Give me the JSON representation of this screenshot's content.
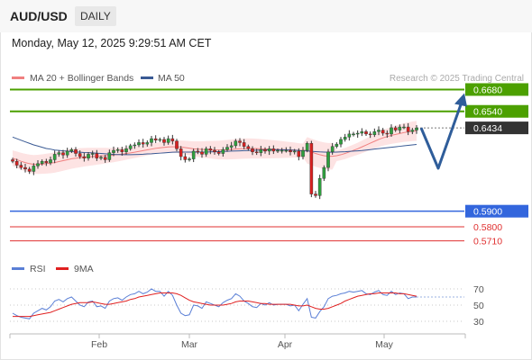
{
  "header": {
    "symbol": "AUD/USD",
    "timeframe": "DAILY",
    "datetime": "Monday, May 12, 2025 9:29:51 AM CET"
  },
  "chart_data": {
    "type": "candlestick",
    "legend": [
      {
        "label": "MA 20 + Bollinger Bands",
        "color": "#f08080"
      },
      {
        "label": "MA 50",
        "color": "#3a5a94"
      }
    ],
    "credit": "Research © 2025 Trading Central",
    "current_price": "0.6434",
    "resistance_levels": [
      "0.6680",
      "0.6540"
    ],
    "support_levels": [
      "0.5900",
      "0.5800",
      "0.5710"
    ],
    "level_colors": {
      "resistance": "#4ca000",
      "pivot": "#3366dd",
      "support": "#e03030",
      "current": "#333333"
    },
    "x_ticks": [
      "Feb",
      "Mar",
      "Apr",
      "May"
    ],
    "y_range": [
      0.565,
      0.67
    ],
    "price_series_close": [
      0.622,
      0.6195,
      0.618,
      0.617,
      0.6155,
      0.619,
      0.6205,
      0.622,
      0.621,
      0.623,
      0.6265,
      0.6275,
      0.626,
      0.6285,
      0.6295,
      0.627,
      0.625,
      0.624,
      0.6265,
      0.627,
      0.624,
      0.6245,
      0.623,
      0.6275,
      0.629,
      0.6295,
      0.628,
      0.63,
      0.632,
      0.6325,
      0.634,
      0.633,
      0.634,
      0.6365,
      0.6355,
      0.636,
      0.634,
      0.6365,
      0.635,
      0.63,
      0.625,
      0.623,
      0.6235,
      0.6285,
      0.628,
      0.6265,
      0.63,
      0.629,
      0.628,
      0.627,
      0.6295,
      0.631,
      0.632,
      0.635,
      0.634,
      0.6315,
      0.63,
      0.628,
      0.6275,
      0.6295,
      0.6285,
      0.63,
      0.6285,
      0.629,
      0.629,
      0.629,
      0.628,
      0.6285,
      0.625,
      0.629,
      0.6335,
      0.601,
      0.6,
      0.611,
      0.618,
      0.628,
      0.6315,
      0.633,
      0.636,
      0.6375,
      0.6395,
      0.6395,
      0.64,
      0.641,
      0.6395,
      0.639,
      0.641,
      0.642,
      0.64,
      0.6395,
      0.6435,
      0.642,
      0.644,
      0.644,
      0.641,
      0.642,
      0.6434
    ],
    "ma50": [
      0.6375,
      0.6365,
      0.6355,
      0.6345,
      0.6335,
      0.6325,
      0.6318,
      0.631,
      0.6302,
      0.6298,
      0.6292,
      0.629,
      0.6287,
      0.6285,
      0.6282,
      0.628,
      0.6278,
      0.6276,
      0.6275,
      0.6274,
      0.6272,
      0.627,
      0.6268,
      0.6266,
      0.6264,
      0.6263,
      0.6262,
      0.6262,
      0.6262,
      0.6263,
      0.6264,
      0.6265,
      0.6267,
      0.6268,
      0.627,
      0.6272,
      0.6274,
      0.6276,
      0.6278,
      0.6279,
      0.6279,
      0.6279,
      0.6279,
      0.6279,
      0.6279,
      0.6279,
      0.6279,
      0.628,
      0.6281,
      0.6282,
      0.6283,
      0.6284,
      0.6285,
      0.6286,
      0.6287,
      0.6288,
      0.6289,
      0.629,
      0.6291,
      0.6292,
      0.6293,
      0.6294,
      0.6294,
      0.6294,
      0.6294,
      0.6293,
      0.6292,
      0.6291,
      0.6289,
      0.6287,
      0.6286,
      0.6284,
      0.6282,
      0.628,
      0.6279,
      0.6278,
      0.6278,
      0.6279,
      0.628,
      0.6281,
      0.6283,
      0.6285,
      0.6287,
      0.6289,
      0.6292,
      0.6295,
      0.6298,
      0.6301,
      0.6304,
      0.6307,
      0.631,
      0.6313,
      0.6316,
      0.6319,
      0.6322,
      0.6325,
      0.6328
    ],
    "ma20": [
      0.624,
      0.623,
      0.622,
      0.6212,
      0.6205,
      0.62,
      0.62,
      0.6202,
      0.6205,
      0.6208,
      0.6212,
      0.6218,
      0.6224,
      0.623,
      0.6236,
      0.624,
      0.6243,
      0.6246,
      0.6248,
      0.625,
      0.6252,
      0.6254,
      0.6256,
      0.6258,
      0.626,
      0.6263,
      0.6266,
      0.627,
      0.6274,
      0.6278,
      0.6283,
      0.6288,
      0.6293,
      0.6298,
      0.6303,
      0.6306,
      0.6309,
      0.6312,
      0.6313,
      0.6313,
      0.6311,
      0.6308,
      0.6304,
      0.63,
      0.6298,
      0.6296,
      0.6295,
      0.6294,
      0.6293,
      0.6292,
      0.6293,
      0.6294,
      0.6296,
      0.6298,
      0.63,
      0.6301,
      0.6302,
      0.6302,
      0.6301,
      0.63,
      0.6299,
      0.6298,
      0.6297,
      0.6296,
      0.6295,
      0.6294,
      0.6293,
      0.6292,
      0.629,
      0.629,
      0.629,
      0.628,
      0.627,
      0.6262,
      0.6256,
      0.6252,
      0.6252,
      0.6256,
      0.6262,
      0.627,
      0.628,
      0.629,
      0.63,
      0.6312,
      0.6324,
      0.6336,
      0.6348,
      0.636,
      0.637,
      0.6378,
      0.6386,
      0.6392,
      0.6398,
      0.6404,
      0.6408,
      0.6412,
      0.6415
    ],
    "rsi": {
      "label": "RSI",
      "color": "#5a7fd6",
      "levels": [
        "70",
        "50",
        "30"
      ],
      "range": [
        20,
        80
      ],
      "values": [
        40,
        37,
        35,
        34,
        33,
        40,
        43,
        46,
        44,
        48,
        55,
        57,
        54,
        58,
        60,
        55,
        50,
        48,
        54,
        55,
        48,
        49,
        46,
        55,
        58,
        59,
        56,
        60,
        63,
        64,
        67,
        64,
        66,
        70,
        67,
        67,
        61,
        67,
        62,
        50,
        40,
        37,
        38,
        50,
        49,
        46,
        54,
        52,
        50,
        48,
        53,
        56,
        58,
        64,
        61,
        55,
        52,
        48,
        47,
        52,
        50,
        53,
        50,
        51,
        51,
        51,
        49,
        50,
        43,
        51,
        58,
        35,
        34,
        42,
        48,
        58,
        61,
        62,
        64,
        65,
        67,
        66,
        67,
        68,
        64,
        63,
        66,
        68,
        63,
        62,
        67,
        63,
        65,
        64,
        58,
        60,
        60
      ]
    },
    "ma9": {
      "label": "9MA",
      "color": "#e02020",
      "values": [
        36,
        36,
        36,
        36,
        36,
        37,
        38,
        39,
        40,
        41,
        43,
        45,
        47,
        49,
        51,
        52,
        53,
        53,
        53,
        54,
        53,
        52,
        51,
        51,
        52,
        53,
        54,
        55,
        57,
        58,
        60,
        61,
        62,
        63,
        64,
        65,
        65,
        65,
        65,
        64,
        62,
        59,
        56,
        54,
        53,
        52,
        51,
        50,
        50,
        50,
        50,
        51,
        52,
        54,
        55,
        55,
        55,
        54,
        53,
        52,
        52,
        51,
        51,
        51,
        51,
        51,
        51,
        50,
        49,
        49,
        50,
        48,
        46,
        45,
        45,
        46,
        48,
        50,
        52,
        55,
        57,
        59,
        61,
        62,
        63,
        64,
        64,
        65,
        65,
        65,
        65,
        65,
        64,
        64,
        63,
        62,
        61
      ]
    }
  }
}
